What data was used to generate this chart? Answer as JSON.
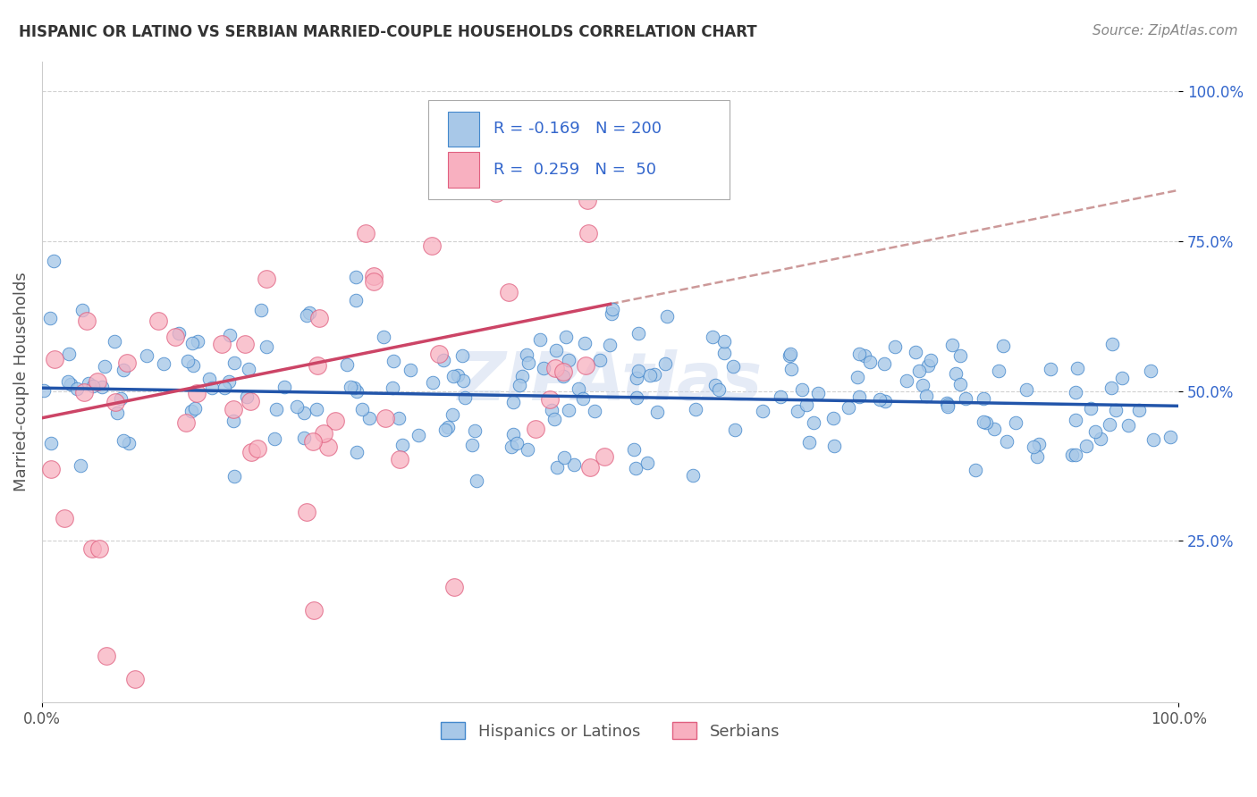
{
  "title": "HISPANIC OR LATINO VS SERBIAN MARRIED-COUPLE HOUSEHOLDS CORRELATION CHART",
  "source": "Source: ZipAtlas.com",
  "ylabel": "Married-couple Households",
  "blue_R": -0.169,
  "blue_N": 200,
  "pink_R": 0.259,
  "pink_N": 50,
  "blue_color": "#a8c8e8",
  "pink_color": "#f8b0c0",
  "blue_edge_color": "#4488cc",
  "pink_edge_color": "#e06080",
  "blue_line_color": "#2255aa",
  "pink_line_color": "#cc4466",
  "dash_line_color": "#cc9999",
  "watermark": "ZIPAtlas",
  "legend_label_blue": "Hispanics or Latinos",
  "legend_label_pink": "Serbians",
  "xlim": [
    0.0,
    1.0
  ],
  "ylim": [
    -0.02,
    1.05
  ],
  "background_color": "#ffffff",
  "grid_color": "#cccccc",
  "title_color": "#333333",
  "axis_label_color": "#555555",
  "r_label_color": "#3366cc"
}
